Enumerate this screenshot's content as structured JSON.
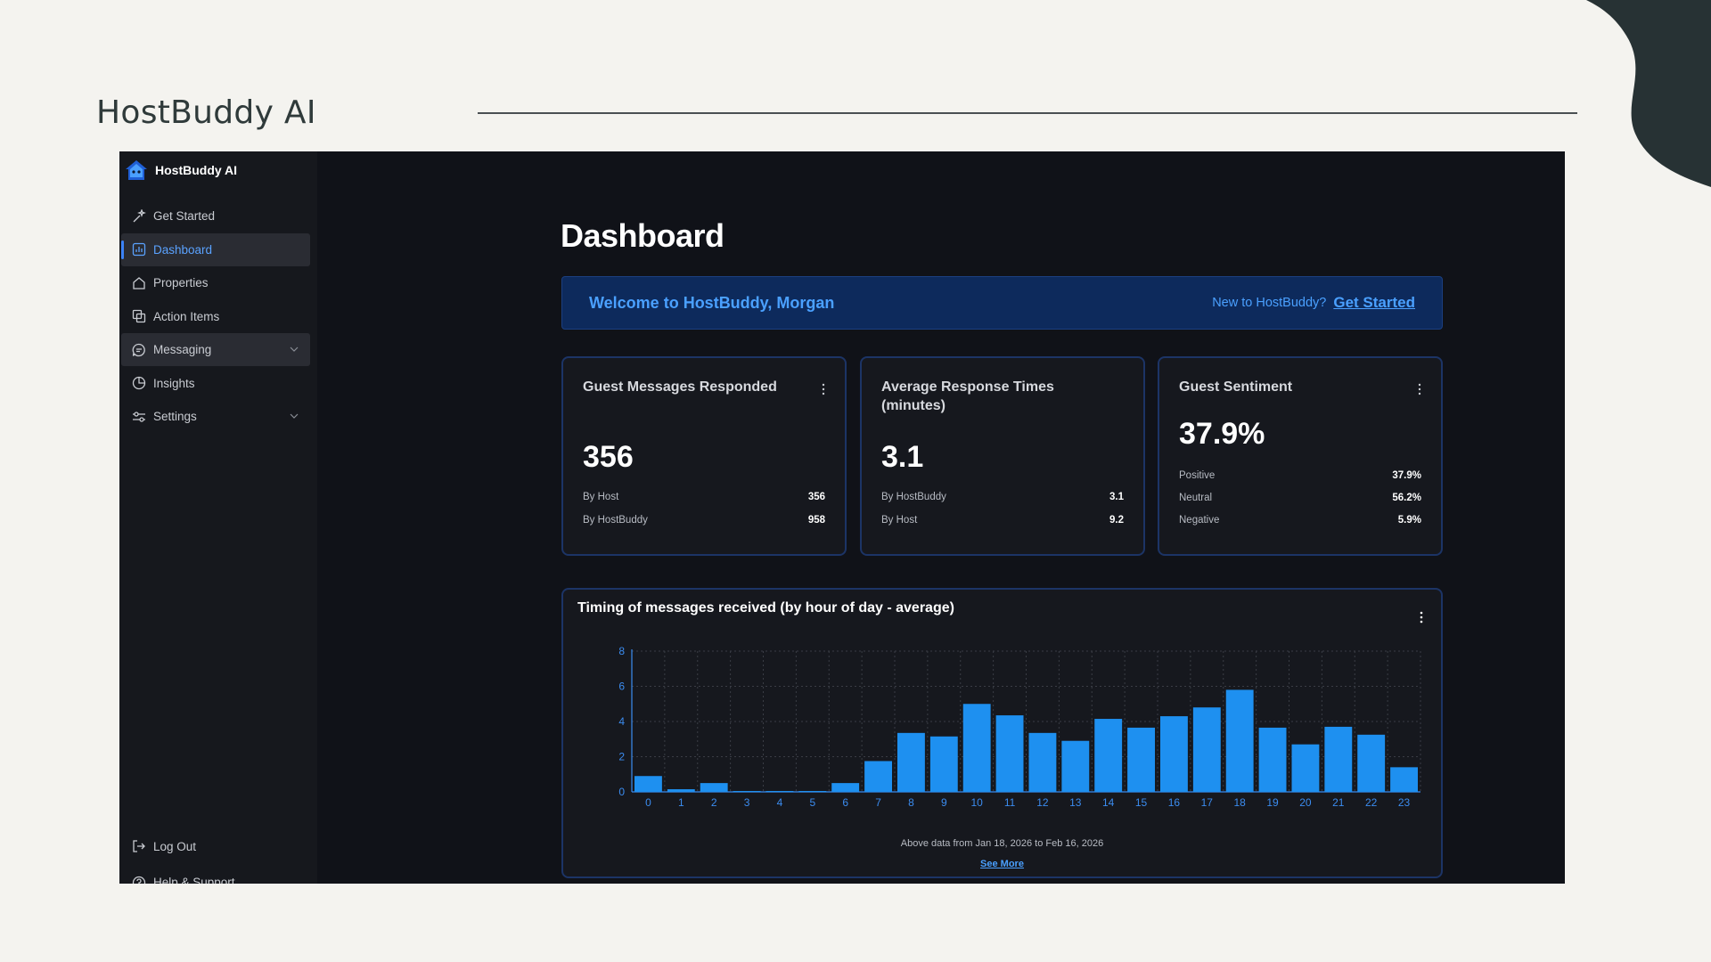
{
  "slide": {
    "title": "HostBuddy AI"
  },
  "sidebar": {
    "brand": "HostBuddy AI",
    "items": [
      {
        "label": "Get Started",
        "icon": "sparkle-icon"
      },
      {
        "label": "Dashboard",
        "icon": "dashboard-icon",
        "active": true
      },
      {
        "label": "Properties",
        "icon": "home-icon"
      },
      {
        "label": "Action Items",
        "icon": "action-items-icon"
      },
      {
        "label": "Messaging",
        "icon": "message-icon",
        "expandable": true
      },
      {
        "label": "Insights",
        "icon": "pie-chart-icon"
      },
      {
        "label": "Settings",
        "icon": "settings-sliders-icon",
        "expandable": true
      }
    ],
    "bottom": [
      {
        "label": "Log Out",
        "icon": "logout-icon"
      },
      {
        "label": "Help & Support",
        "icon": "help-icon"
      }
    ]
  },
  "main": {
    "title": "Dashboard",
    "welcome": {
      "text": "Welcome to HostBuddy, Morgan",
      "question": "New to HostBuddy?",
      "link": "Get Started"
    },
    "cards": [
      {
        "title": "Guest Messages Responded",
        "value": "356",
        "rows": [
          {
            "label": "By Host",
            "value": "356"
          },
          {
            "label": "By HostBuddy",
            "value": "958"
          }
        ]
      },
      {
        "title": "Average Response Times (minutes)",
        "value": "3.1",
        "rows": [
          {
            "label": "By HostBuddy",
            "value": "3.1"
          },
          {
            "label": "By Host",
            "value": "9.2"
          }
        ]
      },
      {
        "title": "Guest Sentiment",
        "value": "37.9%",
        "rows": [
          {
            "label": "Positive",
            "value": "37.9%"
          },
          {
            "label": "Neutral",
            "value": "56.2%"
          },
          {
            "label": "Negative",
            "value": "5.9%"
          }
        ]
      }
    ],
    "chart_card": {
      "note": "Above data from Jan 18, 2026 to Feb 16, 2026",
      "link": "See More"
    }
  },
  "colors": {
    "accent": "#3b82f6",
    "bar": "#1e90f0",
    "background": "#101218"
  },
  "chart_data": {
    "type": "bar",
    "title": "Timing of messages received (by hour of day - average)",
    "categories": [
      "0",
      "1",
      "2",
      "3",
      "4",
      "5",
      "6",
      "7",
      "8",
      "9",
      "10",
      "11",
      "12",
      "13",
      "14",
      "15",
      "16",
      "17",
      "18",
      "19",
      "20",
      "21",
      "22",
      "23"
    ],
    "values": [
      0.9,
      0.15,
      0.5,
      0.05,
      0.05,
      0.05,
      0.5,
      1.75,
      3.35,
      3.15,
      5.0,
      4.35,
      3.35,
      2.9,
      4.15,
      3.65,
      4.3,
      4.8,
      5.8,
      3.65,
      2.7,
      3.7,
      3.25,
      1.4
    ],
    "yticks": [
      "0",
      "2",
      "4",
      "6",
      "8"
    ],
    "ylim": [
      0,
      8
    ],
    "grid": true
  }
}
